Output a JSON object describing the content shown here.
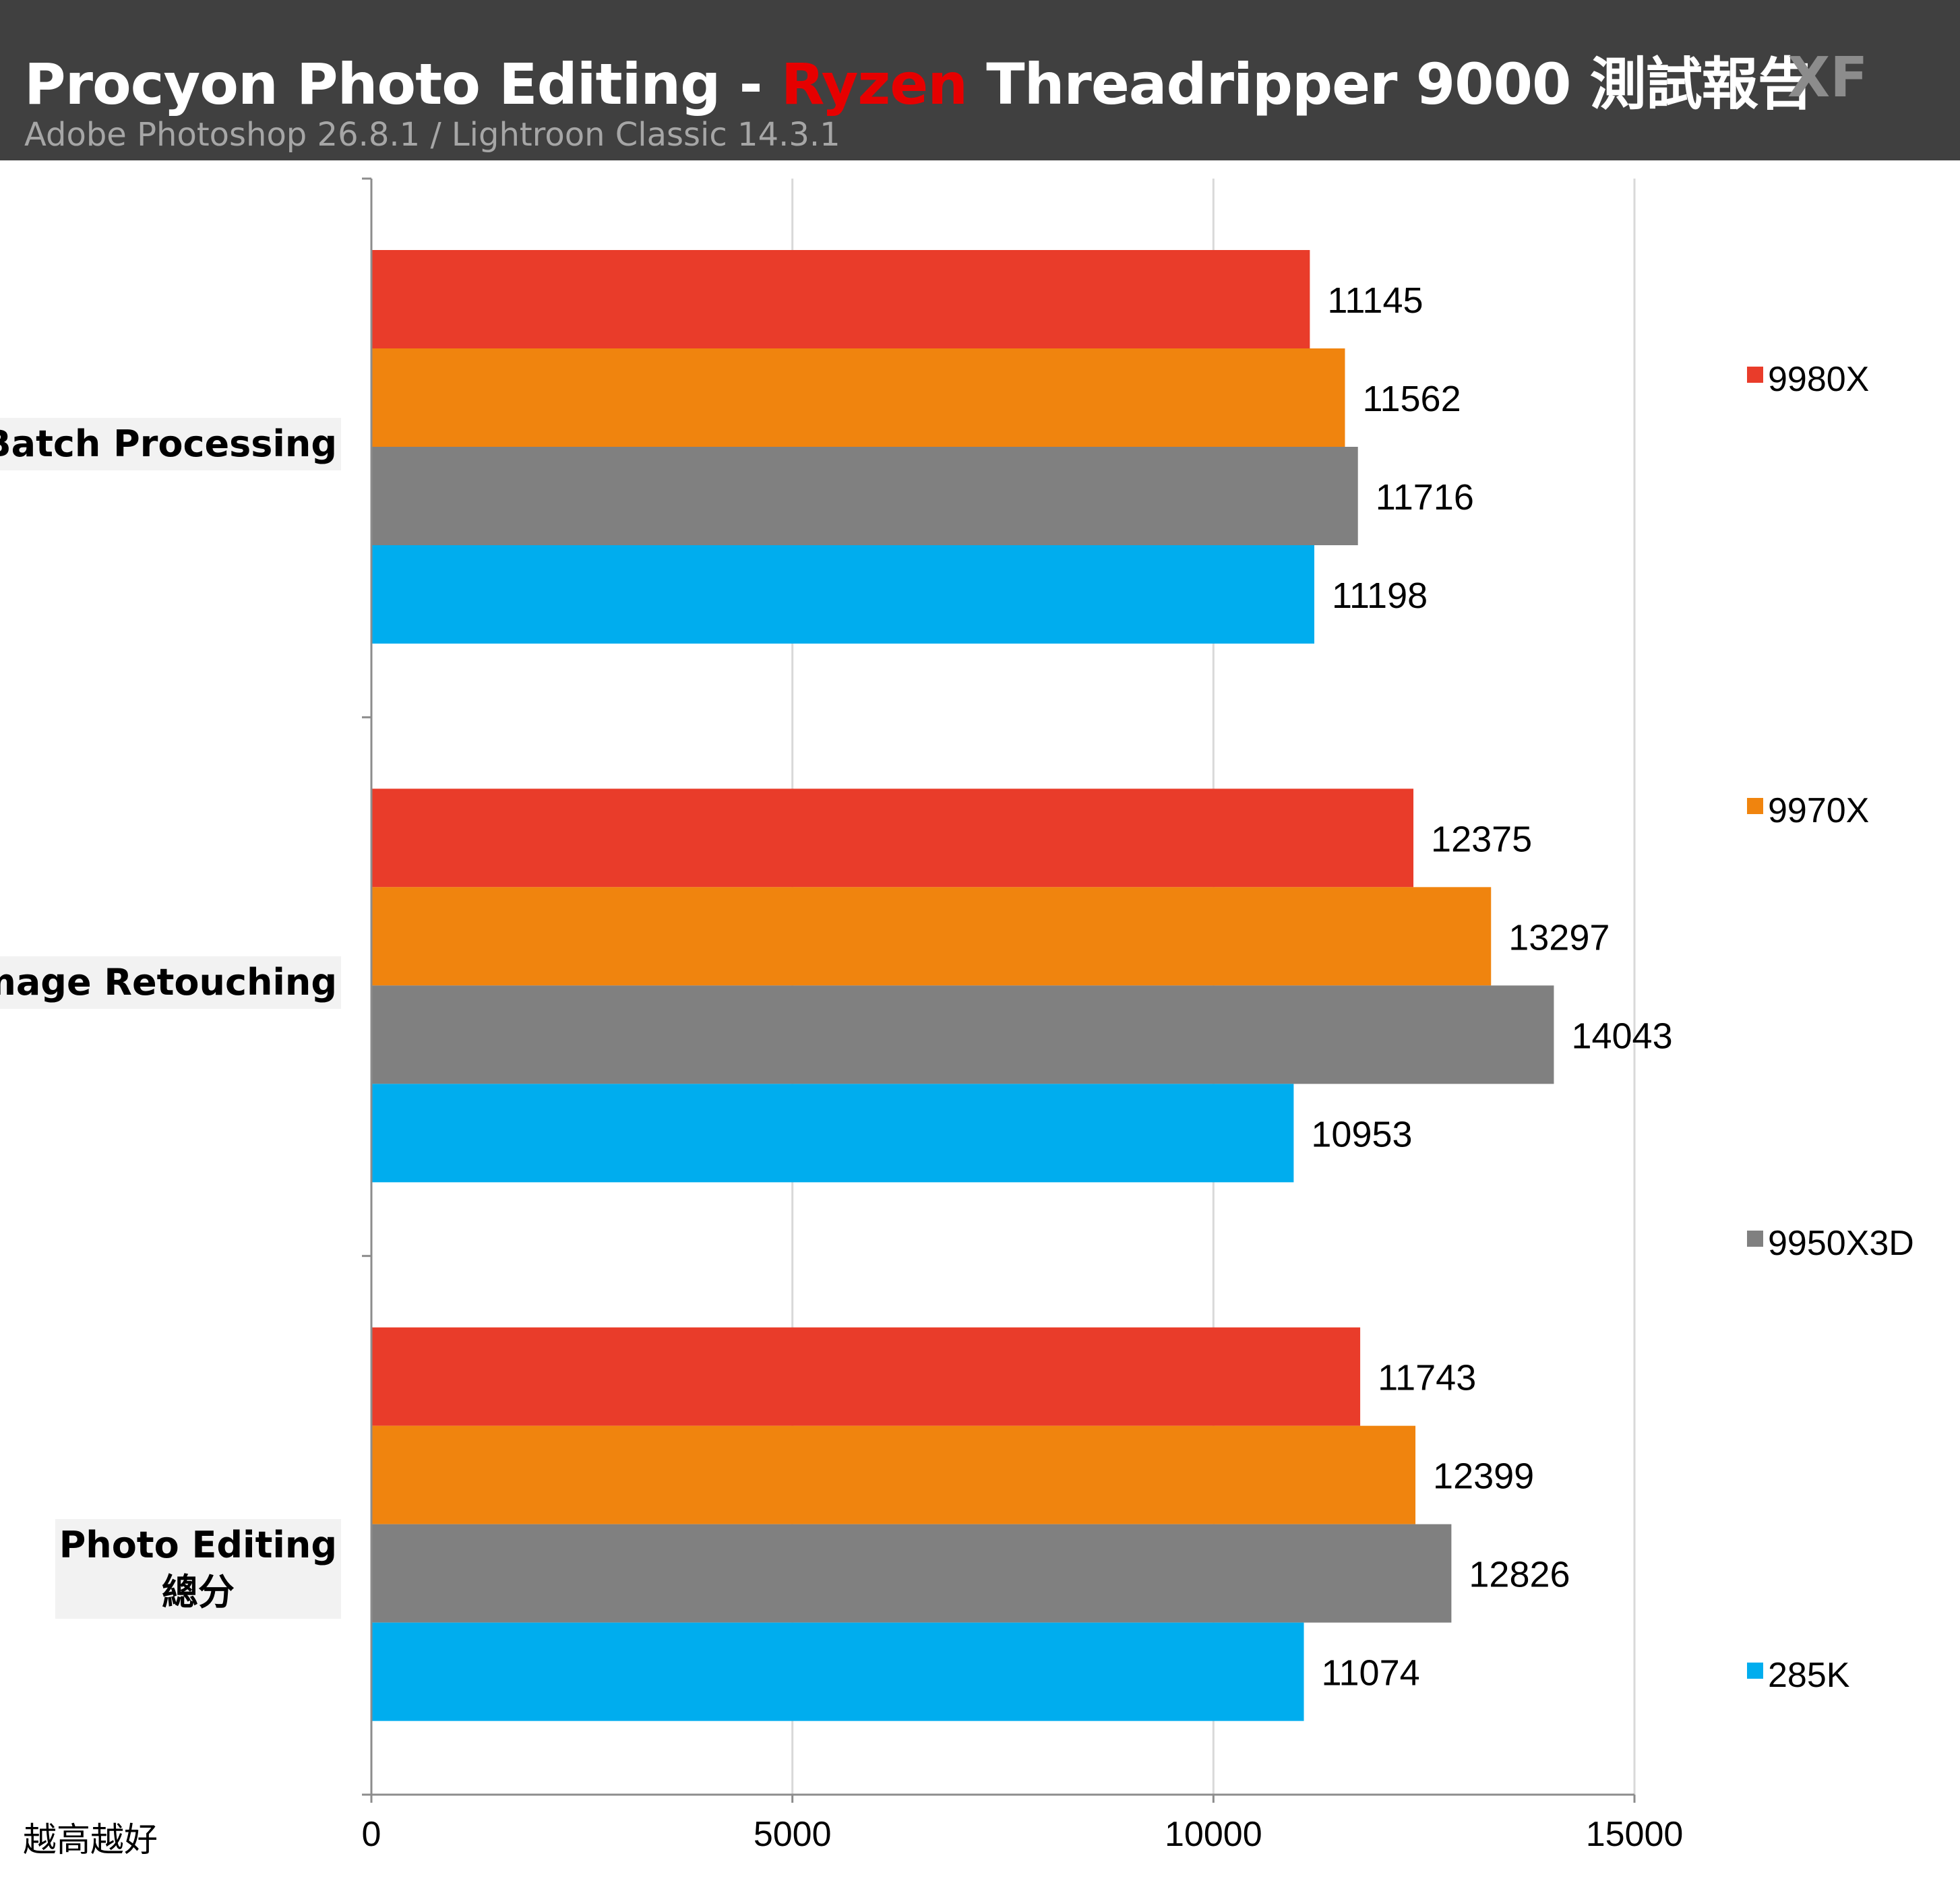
{
  "header": {
    "title_prefix": "Procyon Photo Editing - ",
    "title_highlight": "Ryzen",
    "title_suffix": " Threadripper 9000 測試報告",
    "subtitle": "Adobe Photoshop 26.8.1 / Lightroon Classic  14.3.1",
    "logo": "XF"
  },
  "note": "越高越好",
  "chart_data": {
    "type": "bar",
    "orientation": "horizontal",
    "categories": [
      "Batch Processing",
      "Image Retouching",
      "Photo Editing\n總分"
    ],
    "series": [
      {
        "name": "9980X",
        "color": "#e93c2a",
        "values": [
          11145,
          12375,
          11743
        ]
      },
      {
        "name": "9970X",
        "color": "#f0840e",
        "values": [
          11562,
          13297,
          12399
        ]
      },
      {
        "name": "9950X3D",
        "color": "#808080",
        "values": [
          11716,
          14043,
          12826
        ]
      },
      {
        "name": "285K",
        "color": "#00adee",
        "values": [
          11198,
          10953,
          11074
        ]
      }
    ],
    "xlim": [
      0,
      15000
    ],
    "xticks": [
      0,
      5000,
      10000,
      15000
    ],
    "grid": true,
    "data_labels": true,
    "legend_position": "right"
  }
}
